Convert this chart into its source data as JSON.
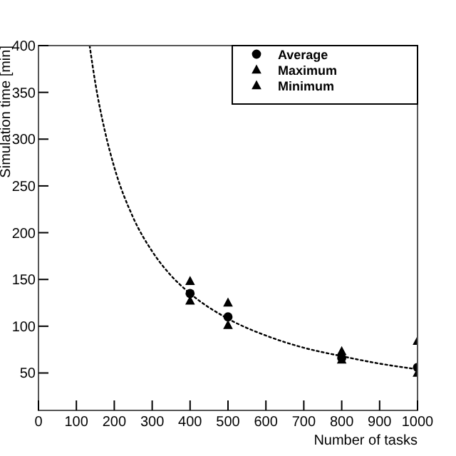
{
  "chart_data": {
    "type": "scatter",
    "xlabel": "Number of tasks",
    "ylabel": "Simulation time [min]",
    "xlim": [
      0,
      1000
    ],
    "ylim": [
      10,
      400
    ],
    "xticks": [
      0,
      100,
      200,
      300,
      400,
      500,
      600,
      700,
      800,
      900,
      1000
    ],
    "yticks": [
      50,
      100,
      150,
      200,
      250,
      300,
      350,
      400
    ],
    "legend": "top right",
    "grid": false,
    "series": [
      {
        "name": "Average",
        "color": "#000000",
        "marker": "circle",
        "x": [
          400,
          500,
          800,
          1000
        ],
        "values": [
          135,
          110,
          66,
          56
        ]
      },
      {
        "name": "Maximum",
        "color": "#000000",
        "marker": "triangle",
        "x": [
          400,
          500,
          800,
          1000
        ],
        "values": [
          148,
          125,
          73,
          84
        ]
      },
      {
        "name": "Minimum",
        "color": "#000000",
        "marker": "triangle",
        "x": [
          400,
          500,
          800,
          1000
        ],
        "values": [
          127,
          101,
          64,
          50
        ]
      },
      {
        "type": "line",
        "color": "#000000",
        "line_style": "dotted",
        "marker": "none",
        "x": [
          135,
          150,
          175,
          200,
          250,
          300,
          350,
          400,
          500,
          600,
          700,
          800,
          900,
          1000
        ],
        "values": [
          400,
          360,
          309,
          270,
          216,
          180,
          154,
          135,
          108,
          90,
          77,
          68,
          60,
          54
        ]
      }
    ]
  }
}
